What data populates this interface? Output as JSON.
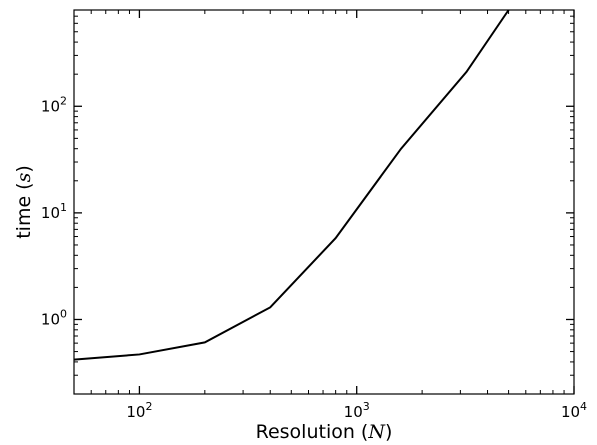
{
  "chart_data": {
    "type": "line",
    "title": "",
    "xlabel": {
      "text": "Resolution",
      "var": "N"
    },
    "ylabel": {
      "text": "time",
      "var": "s"
    },
    "xscale": "log",
    "yscale": "log",
    "xlim": [
      50,
      10000
    ],
    "ylim": [
      0.2,
      800
    ],
    "grid": false,
    "legend": "none",
    "xticks": [
      {
        "value": 100,
        "label": "10",
        "exp": "2"
      },
      {
        "value": 1000,
        "label": "10",
        "exp": "3"
      },
      {
        "value": 10000,
        "label": "10",
        "exp": "4"
      }
    ],
    "yticks": [
      {
        "value": 1,
        "label": "10",
        "exp": "0"
      },
      {
        "value": 10,
        "label": "10",
        "exp": "1"
      },
      {
        "value": 100,
        "label": "10",
        "exp": "2"
      }
    ],
    "series": [
      {
        "color": "#000000",
        "x": [
          50,
          100,
          200,
          400,
          800,
          1600,
          3200,
          5000
        ],
        "y": [
          0.42,
          0.47,
          0.61,
          1.3,
          5.8,
          40,
          210,
          800
        ]
      }
    ]
  }
}
